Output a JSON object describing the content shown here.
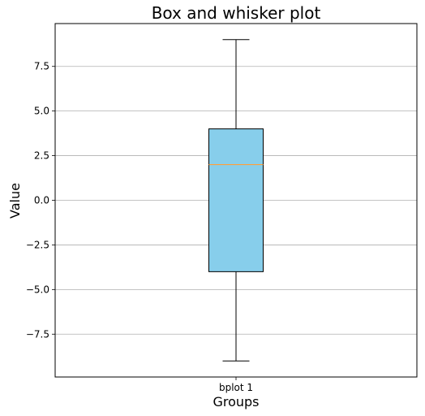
{
  "chart_data": {
    "type": "box",
    "title": "Box and whisker plot",
    "xlabel": "Groups",
    "ylabel": "Value",
    "ylim": [
      -9.9,
      9.9
    ],
    "yticks": [
      -7.5,
      -5.0,
      -2.5,
      0.0,
      2.5,
      5.0,
      7.5
    ],
    "ytick_labels": [
      "−7.5",
      "−5.0",
      "−2.5",
      "0.0",
      "2.5",
      "5.0",
      "7.5"
    ],
    "grid": "y",
    "categories": [
      "bplot 1"
    ],
    "boxes": [
      {
        "label": "bplot 1",
        "whisker_low": -9,
        "q1": -4,
        "median": 2,
        "q3": 4,
        "whisker_high": 9
      }
    ],
    "colors": {
      "box_fill": "#87ceeb",
      "median": "#ff9f3a",
      "grid": "#b0b0b0",
      "edge": "#000000"
    }
  }
}
